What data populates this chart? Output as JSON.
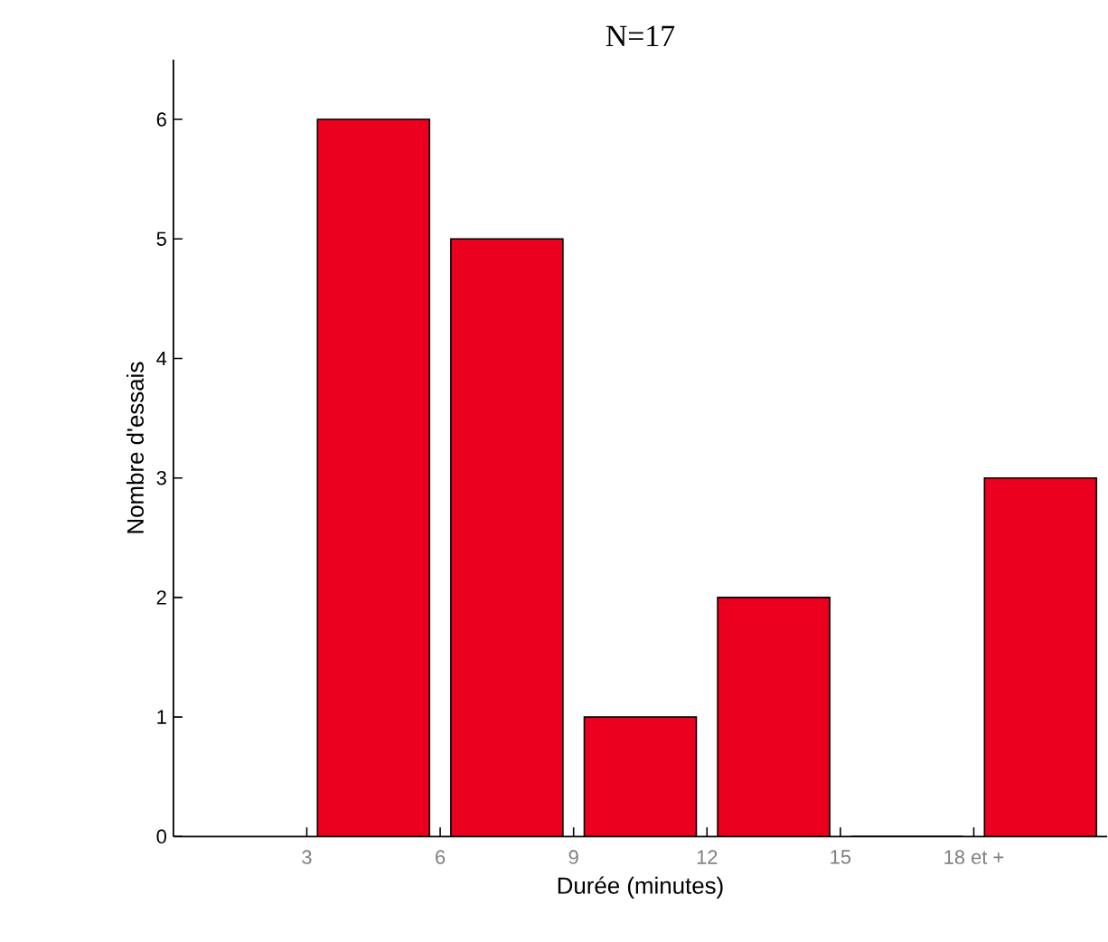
{
  "chart_data": {
    "type": "histogram",
    "title": "N=17",
    "xlabel": "Durée (minutes)",
    "ylabel": "Nombre d'essais",
    "bins": [
      3,
      6,
      9,
      12,
      15,
      18,
      21
    ],
    "values": [
      6,
      5,
      1,
      2,
      0,
      3
    ],
    "color": "#ec0020",
    "xlim": [
      0,
      21
    ],
    "ylim": [
      0,
      6.5
    ],
    "xticks": [
      3,
      6,
      9,
      12,
      15,
      {
        "value": 18,
        "label": "18 et +"
      }
    ],
    "yticks": [
      0,
      1,
      2,
      3,
      4,
      5,
      6
    ]
  }
}
